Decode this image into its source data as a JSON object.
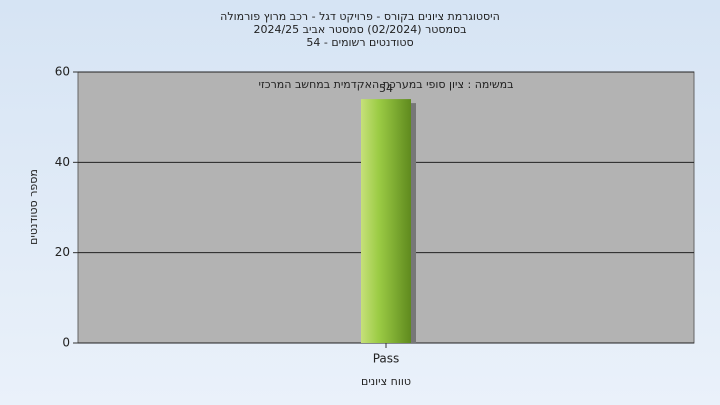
{
  "chart_data": {
    "type": "bar",
    "title_lines": [
      "היסטוגרמת ציונים בקורס - פרויקט דגל - רכב מרוץ פורמולה",
      "בסמסטר  (02/2024)  סמסטר אביב 2024/25",
      "סטודנטים רשומים - 54"
    ],
    "annotation": "במשימה : ציון סופי במערכת האקדמית במחשב המרכזי",
    "x_label": "טווח ציונים",
    "y_label": "מספר סטודנטים",
    "categories": [
      "Pass"
    ],
    "values": [
      54
    ],
    "color": "#9ccc45",
    "ylim": [
      0,
      60
    ],
    "yticks": [
      0,
      20,
      40,
      60
    ],
    "grid": true
  }
}
